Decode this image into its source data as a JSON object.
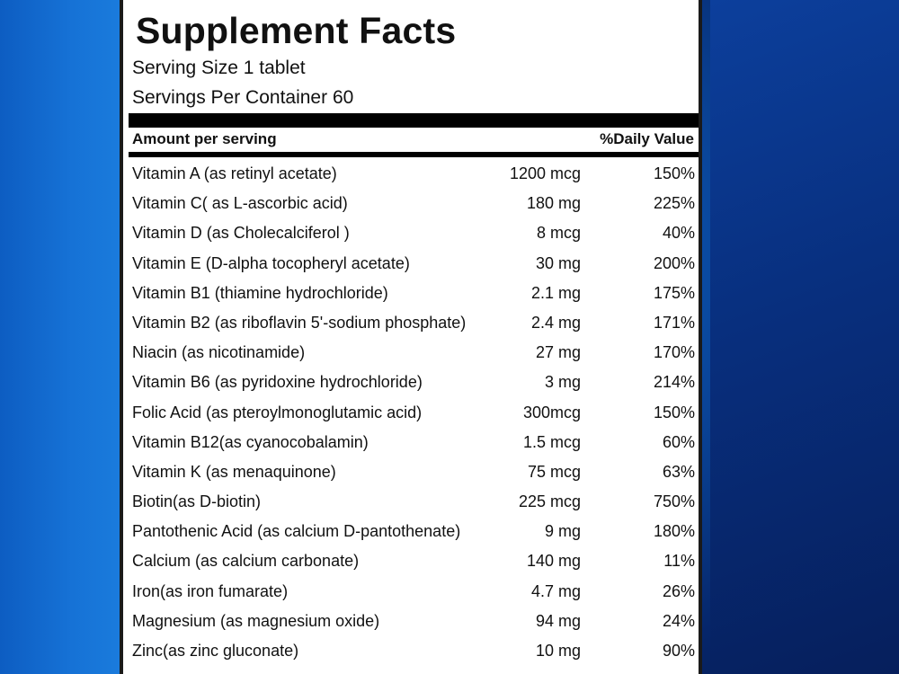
{
  "label": {
    "title": "Supplement Facts",
    "serving_size": "Serving Size 1 tablet",
    "servings_per_container": "Servings Per Container  60",
    "header": {
      "amount_per_serving": "Amount per serving",
      "daily_value": "%Daily Value"
    },
    "nutrients": [
      {
        "name": "Vitamin A (as retinyl acetate)",
        "amount": "1200 mcg",
        "dv": "150%"
      },
      {
        "name": "Vitamin C( as L-ascorbic acid)",
        "amount": "180 mg",
        "dv": "225%"
      },
      {
        "name": "Vitamin D (as Cholecalciferol )",
        "amount": "8 mcg",
        "dv": "40%"
      },
      {
        "name": "Vitamin E (D-alpha tocopheryl acetate)",
        "amount": "30 mg",
        "dv": "200%"
      },
      {
        "name": "Vitamin B1 (thiamine hydrochloride)",
        "amount": "2.1 mg",
        "dv": "175%"
      },
      {
        "name": "Vitamin B2 (as riboflavin 5'-sodium phosphate)",
        "amount": "2.4 mg",
        "dv": "171%"
      },
      {
        "name": "Niacin (as nicotinamide)",
        "amount": "27 mg",
        "dv": "170%"
      },
      {
        "name": "Vitamin B6 (as pyridoxine hydrochloride)",
        "amount": "3 mg",
        "dv": "214%"
      },
      {
        "name": "Folic Acid (as pteroylmonoglutamic acid)",
        "amount": "300mcg",
        "dv": "150%"
      },
      {
        "name": "Vitamin B12(as cyanocobalamin)",
        "amount": "1.5 mcg",
        "dv": "60%"
      },
      {
        "name": "Vitamin K (as menaquinone)",
        "amount": "75 mcg",
        "dv": "63%"
      },
      {
        "name": "Biotin(as D-biotin)",
        "amount": "225 mcg",
        "dv": "750%"
      },
      {
        "name": "Pantothenic Acid (as calcium D-pantothenate)",
        "amount": "9 mg",
        "dv": "180%"
      },
      {
        "name": "Calcium (as calcium carbonate)",
        "amount": "140 mg",
        "dv": "11%"
      },
      {
        "name": "Iron(as iron fumarate)",
        "amount": "4.7 mg",
        "dv": "26%"
      },
      {
        "name": "Magnesium (as magnesium oxide)",
        "amount": "94 mg",
        "dv": "24%"
      },
      {
        "name": "Zinc(as zinc gluconate)",
        "amount": "10 mg",
        "dv": "90%"
      }
    ]
  },
  "colors": {
    "background_blue": "#0b4fa8",
    "panel_white": "#ffffff",
    "text_black": "#111111"
  }
}
